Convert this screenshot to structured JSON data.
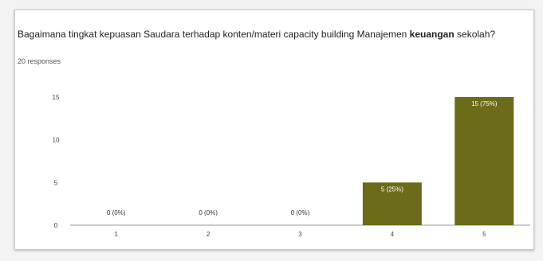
{
  "question": {
    "text_part1": "Bagaimana tingkat kepuasan Saudara terhadap konten/materi capacity building Manajemen",
    "text_part2_bold": "keuangan",
    "text_part3": "sekolah?",
    "responses": "20 responses"
  },
  "colors": {
    "bar": "#6b6b1a",
    "axis": "#999999",
    "grid": "#e0e0e0"
  },
  "chart_data": {
    "type": "bar",
    "categories": [
      "1",
      "2",
      "3",
      "4",
      "5"
    ],
    "values": [
      0,
      0,
      0,
      5,
      15
    ],
    "data_labels": [
      "0 (0%)",
      "0 (0%)",
      "0 (0%)",
      "5 (25%)",
      "15 (75%)"
    ],
    "y_ticks": [
      0,
      5,
      10,
      15
    ],
    "ylim": [
      0,
      15
    ],
    "grid": false,
    "title": "",
    "xlabel": "",
    "ylabel": ""
  }
}
